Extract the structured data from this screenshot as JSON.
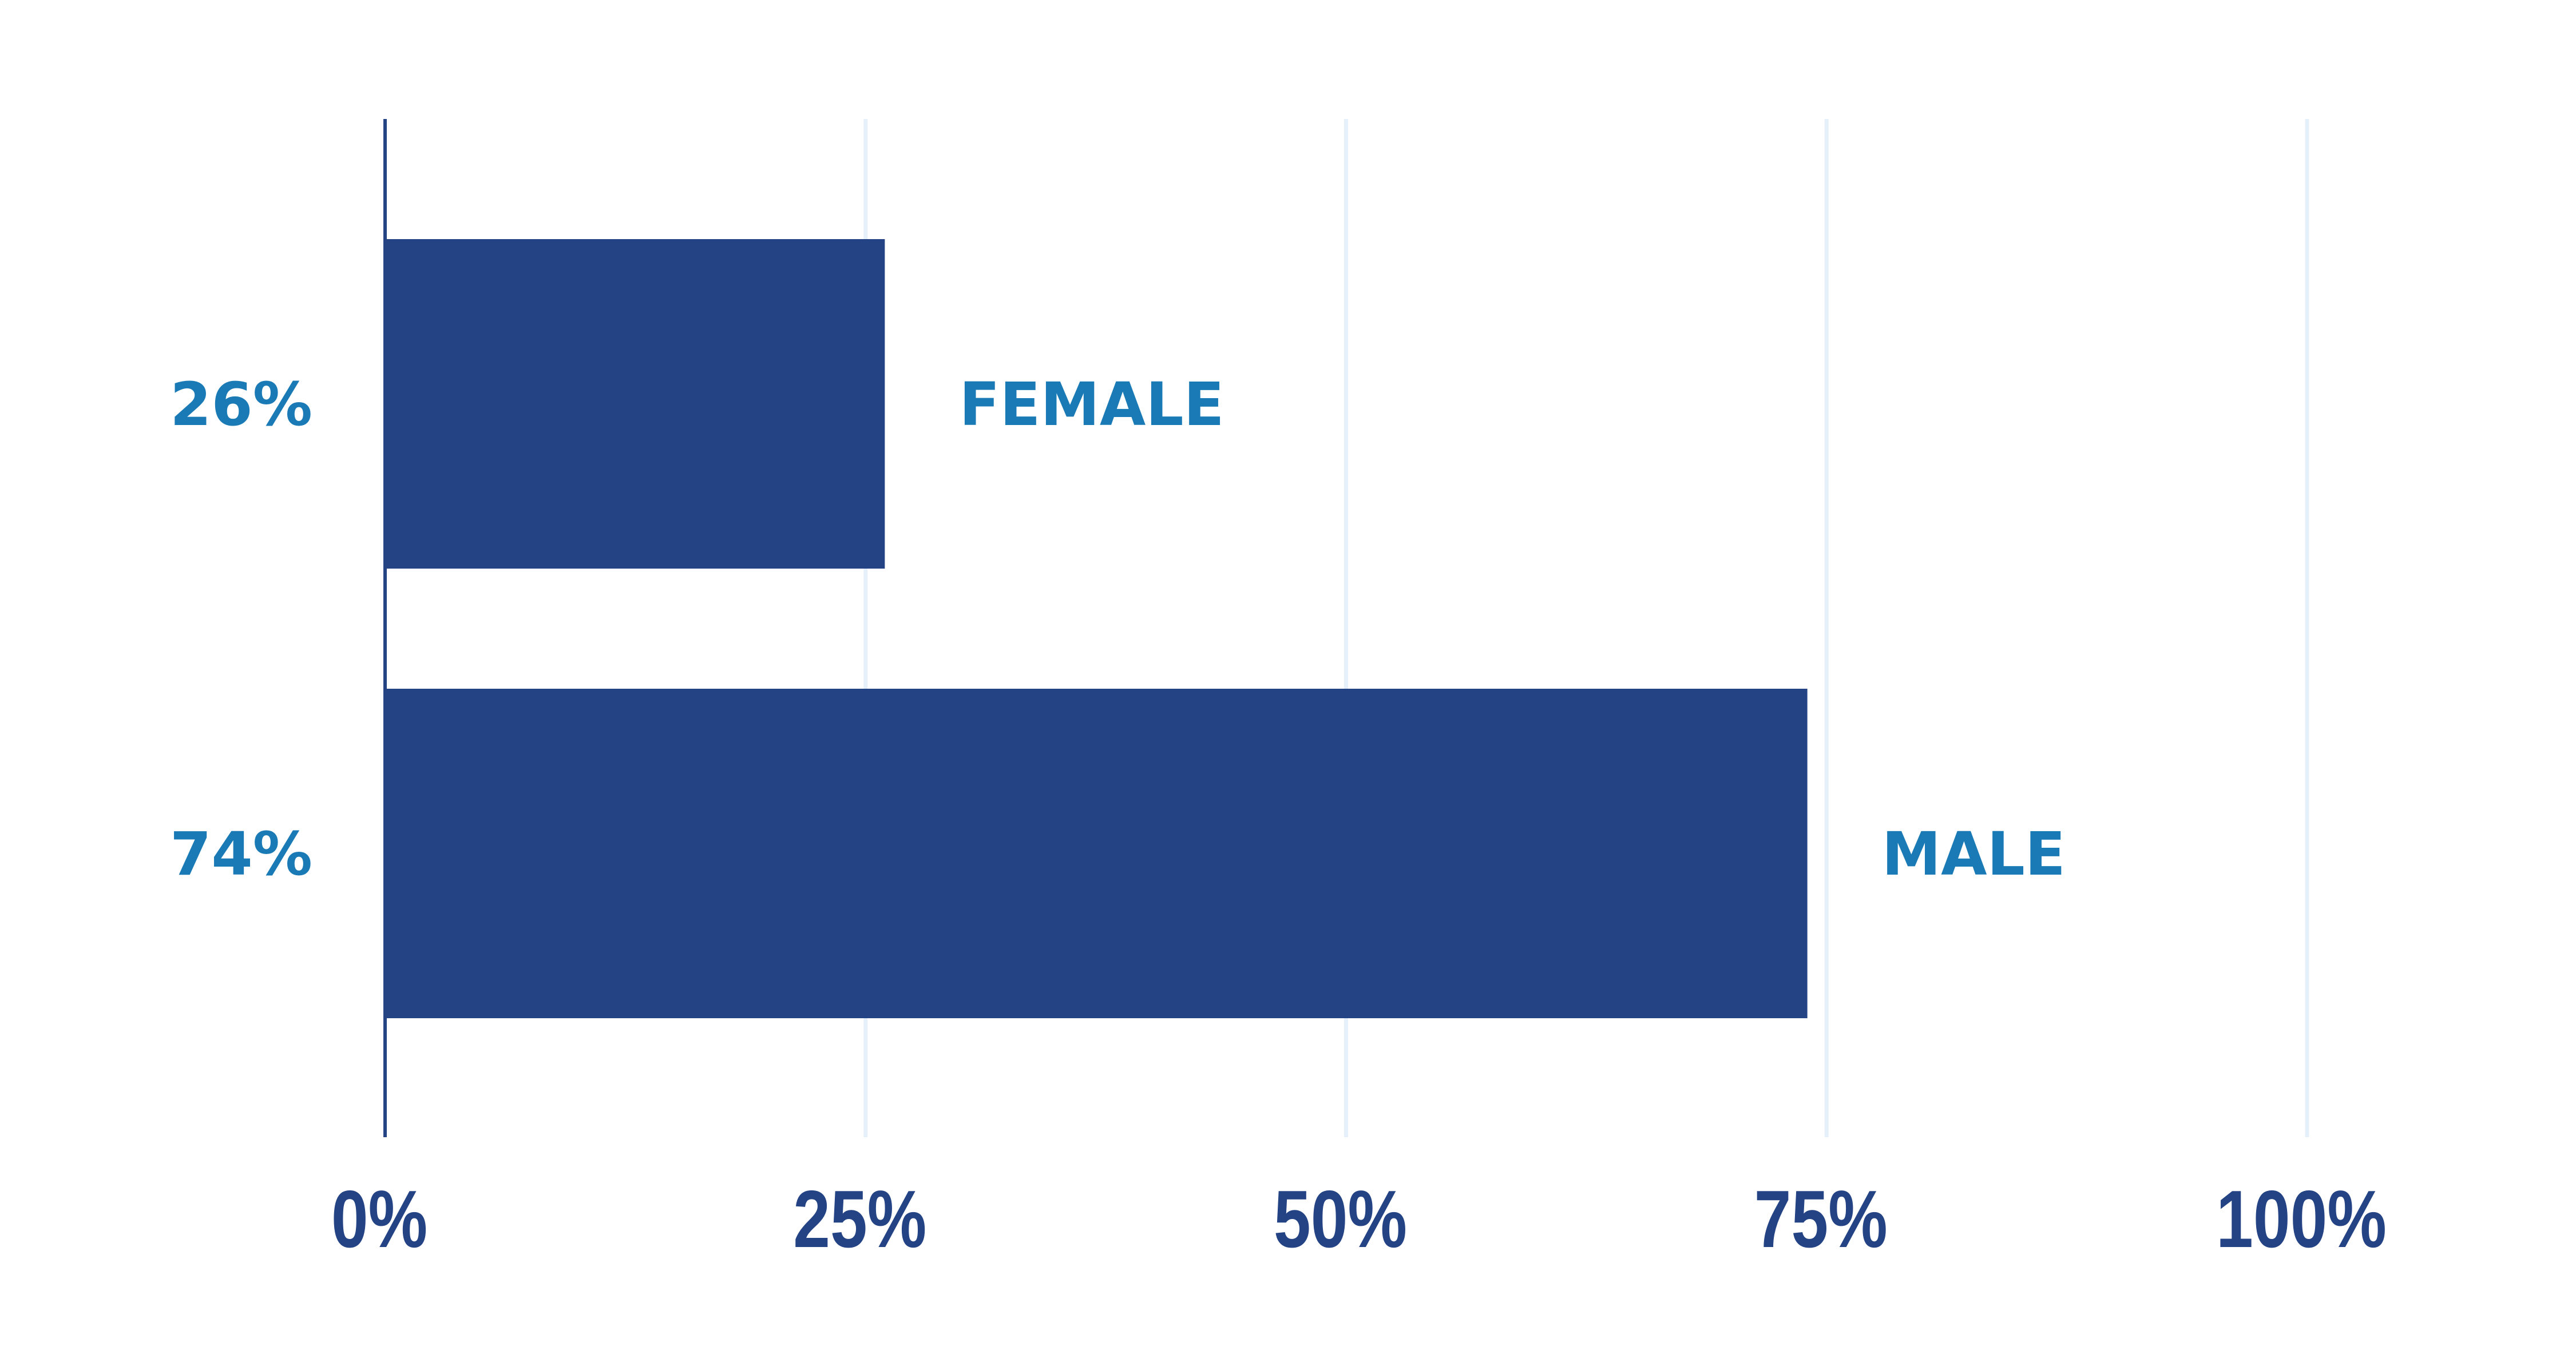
{
  "chart_data": {
    "type": "bar",
    "orientation": "horizontal",
    "categories": [
      "FEMALE",
      "MALE"
    ],
    "values": [
      26,
      74
    ],
    "value_labels": [
      "26%",
      "74%"
    ],
    "xlim": [
      0,
      100
    ],
    "x_ticks": [
      0,
      25,
      50,
      75,
      100
    ],
    "x_tick_labels": [
      "0%",
      "25%",
      "50%",
      "75%",
      "100%"
    ],
    "grid": true,
    "legend": "none",
    "title": "",
    "xlabel": "",
    "ylabel": ""
  },
  "colors": {
    "bar": "#234385",
    "axis": "#234385",
    "grid": "#e6f0fa",
    "tick_label": "#234385",
    "category_label": "#1a7ab5",
    "value_label": "#1a7ab5",
    "background": "#ffffff"
  }
}
